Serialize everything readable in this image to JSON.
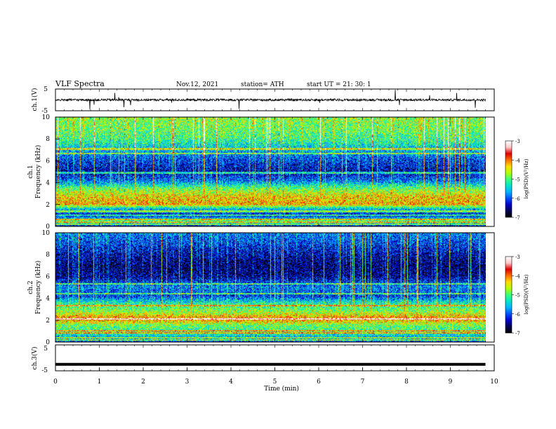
{
  "header": {
    "title": "VLF  Spectra",
    "date": "Nov.12, 2021",
    "station": "station= ATH",
    "start": "start  UT  =    21: 30: 1"
  },
  "colors": {
    "colormap": [
      "#000000",
      "#000050",
      "#0000c8",
      "#0050ff",
      "#00b4ff",
      "#00e6c8",
      "#3cff78",
      "#b4ff00",
      "#ffdc00",
      "#ff6e00",
      "#dc0000",
      "#ffc8c8",
      "#ffffff"
    ],
    "trace": "#000000",
    "frame": "#000000"
  },
  "chart_data": [
    {
      "type": "line",
      "name": "ch1-waveform",
      "ylabel": "ch.1(V)",
      "ylim": [
        -5,
        5
      ],
      "yticks": [
        "5",
        "-5"
      ],
      "xlim": [
        0,
        10
      ],
      "baseline_value": 0,
      "description_values": {
        "mean_V": 0.0,
        "noise_V": 0.5,
        "spike_max_V": 5
      }
    },
    {
      "type": "heatmap",
      "name": "ch1-spectrogram",
      "xlabel": "Time  (min)",
      "ylabel_line1": "ch.1",
      "ylabel_line2": "Frequency  (kHz)",
      "xlim": [
        0,
        10
      ],
      "ylim": [
        0,
        10
      ],
      "data_end_min": 9.8,
      "yticks": [
        "0",
        "2",
        "4",
        "6",
        "8",
        "10"
      ],
      "colorbar": {
        "label": "log(PSD)(V²/Hz)",
        "range": [
          -7,
          -3
        ],
        "ticks": [
          "-3",
          "-4",
          "-5",
          "-6",
          "-7"
        ]
      },
      "band_profile_khz": [
        {
          "f": 0.0,
          "log_psd": -6.2
        },
        {
          "f": 0.5,
          "log_psd": -5.0
        },
        {
          "f": 1.0,
          "log_psd": -6.3
        },
        {
          "f": 1.6,
          "log_psd": -5.5
        },
        {
          "f": 2.0,
          "log_psd": -4.2
        },
        {
          "f": 2.8,
          "log_psd": -4.4
        },
        {
          "f": 3.4,
          "log_psd": -4.9
        },
        {
          "f": 4.2,
          "log_psd": -5.9
        },
        {
          "f": 5.0,
          "log_psd": -6.4
        },
        {
          "f": 6.0,
          "log_psd": -6.1
        },
        {
          "f": 7.0,
          "log_psd": -5.6
        },
        {
          "f": 8.0,
          "log_psd": -5.1
        },
        {
          "f": 9.0,
          "log_psd": -4.9
        },
        {
          "f": 10.0,
          "log_psd": -4.8
        }
      ]
    },
    {
      "type": "heatmap",
      "name": "ch2-spectrogram",
      "ylabel_line1": "ch.2",
      "ylabel_line2": "Frequency  (kHz)",
      "xlim": [
        0,
        10
      ],
      "ylim": [
        0,
        10
      ],
      "data_end_min": 9.8,
      "yticks": [
        "0",
        "2",
        "4",
        "6",
        "8",
        "10"
      ],
      "colorbar": {
        "label": "log(PSD)(V²/Hz)",
        "range": [
          -7,
          -3
        ],
        "ticks": [
          "-3",
          "-4",
          "-5",
          "-6",
          "-7"
        ]
      },
      "band_profile_khz": [
        {
          "f": 0.0,
          "log_psd": -6.0
        },
        {
          "f": 0.8,
          "log_psd": -5.2
        },
        {
          "f": 1.5,
          "log_psd": -4.9
        },
        {
          "f": 2.1,
          "log_psd": -4.0
        },
        {
          "f": 2.8,
          "log_psd": -4.8
        },
        {
          "f": 3.6,
          "log_psd": -5.3
        },
        {
          "f": 4.2,
          "log_psd": -6.1
        },
        {
          "f": 5.0,
          "log_psd": -5.8
        },
        {
          "f": 6.0,
          "log_psd": -6.5
        },
        {
          "f": 7.0,
          "log_psd": -6.6
        },
        {
          "f": 8.0,
          "log_psd": -6.4
        },
        {
          "f": 9.0,
          "log_psd": -6.1
        },
        {
          "f": 10.0,
          "log_psd": -5.8
        }
      ]
    },
    {
      "type": "line",
      "name": "ch3-waveform",
      "ylabel": "ch.3(V)",
      "ylim": [
        -5,
        5
      ],
      "yticks": [
        "5",
        "-5"
      ],
      "xlim": [
        0,
        10
      ],
      "xticks": [
        "0",
        "1",
        "2",
        "3",
        "4",
        "5",
        "6",
        "7",
        "8",
        "9",
        "10"
      ],
      "xlabel": "Time  (min)",
      "baseline_value": -2.5
    }
  ]
}
